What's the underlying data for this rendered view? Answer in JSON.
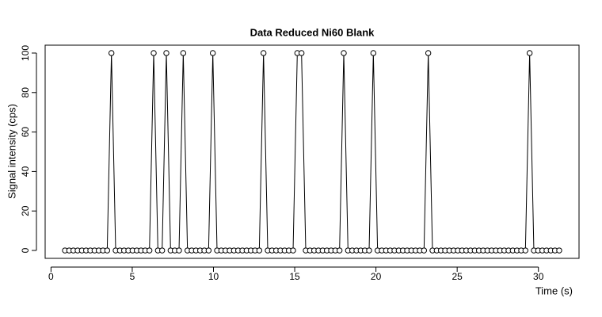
{
  "chart_data": {
    "type": "line",
    "title": "Data Reduced Ni60 Blank",
    "x_label": "Time (s)",
    "y_label": "Signal intensity (cps)",
    "color": "#000000",
    "x": [
      0.86,
      1.12,
      1.38,
      1.64,
      1.9,
      2.16,
      2.42,
      2.68,
      2.94,
      3.2,
      3.46,
      3.72,
      3.98,
      4.24,
      4.5,
      4.76,
      5.02,
      5.28,
      5.54,
      5.8,
      6.06,
      6.32,
      6.58,
      6.84,
      7.1,
      7.36,
      7.62,
      7.88,
      8.14,
      8.4,
      8.66,
      8.92,
      9.18,
      9.44,
      9.7,
      9.96,
      10.22,
      10.48,
      10.74,
      11,
      11.26,
      11.52,
      11.78,
      12.04,
      12.3,
      12.56,
      12.82,
      13.08,
      13.34,
      13.6,
      13.86,
      14.12,
      14.38,
      14.64,
      14.9,
      15.16,
      15.42,
      15.68,
      15.94,
      16.2,
      16.46,
      16.72,
      16.98,
      17.24,
      17.5,
      17.76,
      18.02,
      18.28,
      18.54,
      18.8,
      19.06,
      19.32,
      19.58,
      19.84,
      20.1,
      20.36,
      20.62,
      20.88,
      21.14,
      21.4,
      21.66,
      21.92,
      22.18,
      22.44,
      22.7,
      22.96,
      23.22,
      23.48,
      23.74,
      24,
      24.26,
      24.52,
      24.78,
      25.04,
      25.3,
      25.56,
      25.82,
      26.08,
      26.34,
      26.6,
      26.86,
      27.12,
      27.38,
      27.64,
      27.9,
      28.16,
      28.42,
      28.68,
      28.94,
      29.2,
      29.46,
      29.72,
      29.98,
      30.24,
      30.5,
      30.76,
      31.02,
      31.28
    ],
    "values": [
      0,
      0,
      0,
      0,
      0,
      0,
      0,
      0,
      0,
      0,
      0,
      100,
      0,
      0,
      0,
      0,
      0,
      0,
      0,
      0,
      0,
      100,
      0,
      0,
      100,
      0,
      0,
      0,
      100,
      0,
      0,
      0,
      0,
      0,
      0,
      100,
      0,
      0,
      0,
      0,
      0,
      0,
      0,
      0,
      0,
      0,
      0,
      100,
      0,
      0,
      0,
      0,
      0,
      0,
      0,
      100,
      100,
      0,
      0,
      0,
      0,
      0,
      0,
      0,
      0,
      0,
      100,
      0,
      0,
      0,
      0,
      0,
      0,
      100,
      0,
      0,
      0,
      0,
      0,
      0,
      0,
      0,
      0,
      0,
      0,
      0,
      100,
      0,
      0,
      0,
      0,
      0,
      0,
      0,
      0,
      0,
      0,
      0,
      0,
      0,
      0,
      0,
      0,
      0,
      0,
      0,
      0,
      0,
      0,
      0,
      100,
      0,
      0,
      0,
      0,
      0,
      0,
      0
    ],
    "xlim": [
      -0.36,
      32.5
    ],
    "xticks": [
      0,
      5,
      10,
      15,
      20,
      25,
      30
    ],
    "ylim": [
      -4,
      104
    ],
    "yticks": [
      0,
      20,
      40,
      60,
      80,
      100
    ]
  }
}
